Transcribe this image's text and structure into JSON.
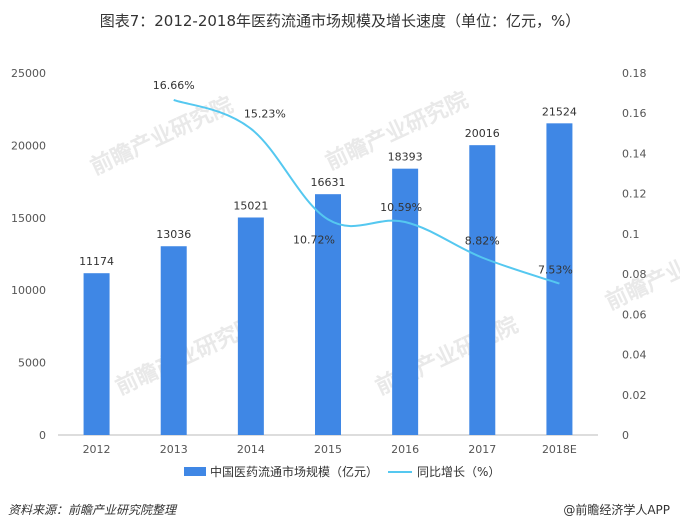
{
  "title": "图表7：2012-2018年医药流通市场规模及增长速度（单位：亿元，%）",
  "source": "资料来源：前瞻产业研究院整理",
  "brand": "@前瞻经济学人APP",
  "watermark": "前瞻产业研究院",
  "colors": {
    "bar": "#3f87e5",
    "line": "#55c8f0"
  },
  "chart_data": {
    "type": "bar",
    "categories": [
      "2012",
      "2013",
      "2014",
      "2015",
      "2016",
      "2017",
      "2018E"
    ],
    "series": [
      {
        "name": "中国医药流通市场规模（亿元）",
        "type": "bar",
        "axis": "left",
        "values": [
          11174,
          13036,
          15021,
          16631,
          18393,
          20016,
          21524
        ],
        "labels": [
          "11174",
          "13036",
          "15021",
          "16631",
          "18393",
          "20016",
          "21524"
        ]
      },
      {
        "name": "同比增长（%）",
        "type": "line",
        "axis": "right",
        "values": [
          null,
          0.1666,
          0.1523,
          0.1072,
          0.1059,
          0.0882,
          0.0753
        ],
        "labels": [
          "",
          "16.66%",
          "15.23%",
          "10.72%",
          "10.59%",
          "8.82%",
          "7.53%"
        ]
      }
    ],
    "left_axis": {
      "ylim": [
        0,
        25000
      ],
      "ticks": [
        "0",
        "5000",
        "10000",
        "15000",
        "20000",
        "25000"
      ]
    },
    "right_axis": {
      "ylim": [
        0,
        0.18
      ],
      "ticks": [
        "0",
        "0.02",
        "0.04",
        "0.06",
        "0.08",
        "0.1",
        "0.12",
        "0.14",
        "0.16",
        "0.18"
      ]
    },
    "legend_position": "bottom",
    "grid": false
  }
}
